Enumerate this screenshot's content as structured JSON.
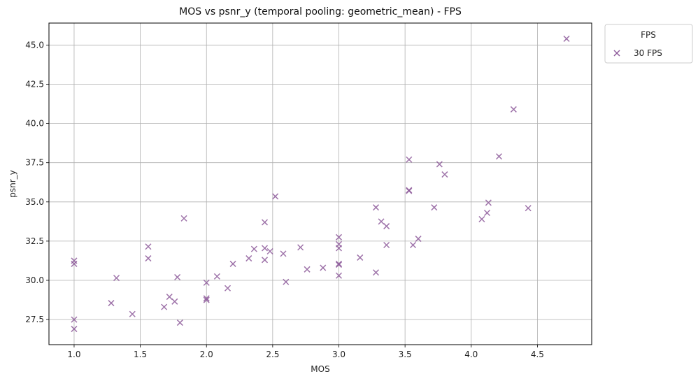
{
  "chart_data": {
    "type": "scatter",
    "title": "MOS vs psnr_y (temporal pooling: geometric_mean) - FPS",
    "xlabel": "MOS",
    "ylabel": "psnr_y",
    "xlim": [
      0.81,
      4.91
    ],
    "ylim": [
      25.9,
      46.4
    ],
    "xticks": [
      1.0,
      1.5,
      2.0,
      2.5,
      3.0,
      3.5,
      4.0,
      4.5
    ],
    "xtick_labels": [
      "1.0",
      "1.5",
      "2.0",
      "2.5",
      "3.0",
      "3.5",
      "4.0",
      "4.5"
    ],
    "yticks": [
      27.5,
      30.0,
      32.5,
      35.0,
      37.5,
      40.0,
      42.5,
      45.0
    ],
    "ytick_labels": [
      "27.5",
      "30.0",
      "32.5",
      "35.0",
      "37.5",
      "40.0",
      "42.5",
      "45.0"
    ],
    "grid": true,
    "legend": {
      "title": "FPS",
      "placement": "outside-upper-right"
    },
    "marker": "x",
    "series": [
      {
        "name": "30 FPS",
        "color": "#8e5b9b",
        "points": [
          [
            1.0,
            31.25
          ],
          [
            1.0,
            31.05
          ],
          [
            1.0,
            27.5
          ],
          [
            1.0,
            26.9
          ],
          [
            1.28,
            28.55
          ],
          [
            1.32,
            30.15
          ],
          [
            1.44,
            27.85
          ],
          [
            1.56,
            32.15
          ],
          [
            1.56,
            31.4
          ],
          [
            1.68,
            28.3
          ],
          [
            1.72,
            28.95
          ],
          [
            1.76,
            28.65
          ],
          [
            1.78,
            30.2
          ],
          [
            1.8,
            27.3
          ],
          [
            1.83,
            33.95
          ],
          [
            2.0,
            29.85
          ],
          [
            2.0,
            28.85
          ],
          [
            2.0,
            28.75
          ],
          [
            2.08,
            30.25
          ],
          [
            2.16,
            29.5
          ],
          [
            2.2,
            31.05
          ],
          [
            2.32,
            31.4
          ],
          [
            2.36,
            32.0
          ],
          [
            2.44,
            33.7
          ],
          [
            2.44,
            32.05
          ],
          [
            2.44,
            31.3
          ],
          [
            2.48,
            31.85
          ],
          [
            2.52,
            35.35
          ],
          [
            2.58,
            31.7
          ],
          [
            2.6,
            29.9
          ],
          [
            2.71,
            32.1
          ],
          [
            2.76,
            30.7
          ],
          [
            2.88,
            30.8
          ],
          [
            3.0,
            32.75
          ],
          [
            3.0,
            32.3
          ],
          [
            3.0,
            32.05
          ],
          [
            3.0,
            31.05
          ],
          [
            3.0,
            31.0
          ],
          [
            3.0,
            30.3
          ],
          [
            3.16,
            31.45
          ],
          [
            3.28,
            34.65
          ],
          [
            3.28,
            30.5
          ],
          [
            3.32,
            33.75
          ],
          [
            3.36,
            33.45
          ],
          [
            3.36,
            32.25
          ],
          [
            3.53,
            37.7
          ],
          [
            3.53,
            35.75
          ],
          [
            3.53,
            35.7
          ],
          [
            3.56,
            32.25
          ],
          [
            3.6,
            32.65
          ],
          [
            3.72,
            34.65
          ],
          [
            3.76,
            37.4
          ],
          [
            3.8,
            36.75
          ],
          [
            4.08,
            33.9
          ],
          [
            4.12,
            34.3
          ],
          [
            4.13,
            34.95
          ],
          [
            4.21,
            37.9
          ],
          [
            4.32,
            40.9
          ],
          [
            4.43,
            34.6
          ],
          [
            4.72,
            45.4
          ]
        ]
      }
    ]
  }
}
